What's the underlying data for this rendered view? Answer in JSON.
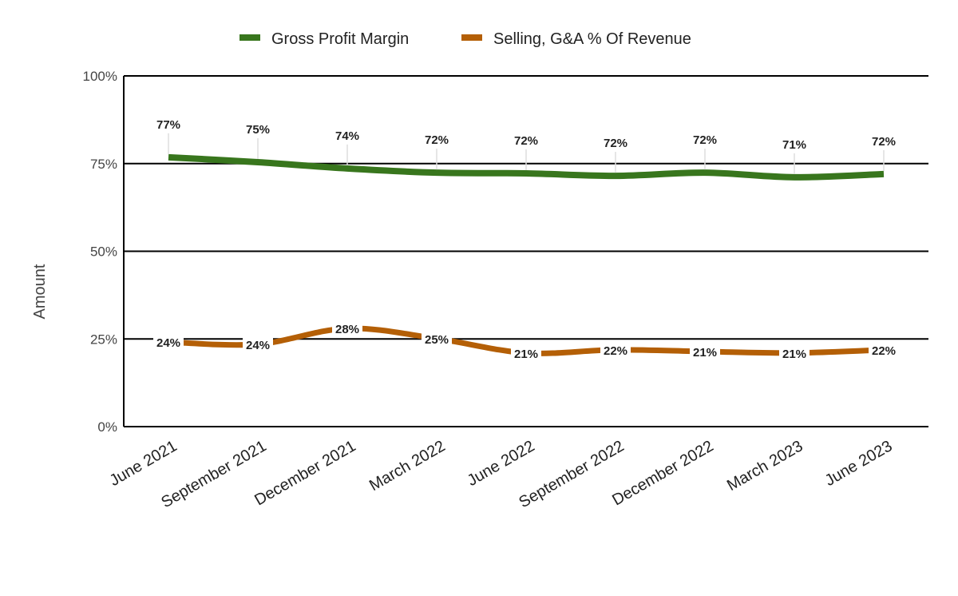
{
  "chart_data": {
    "type": "line",
    "title": "",
    "xlabel": "",
    "ylabel": "Amount",
    "ylim": [
      0,
      100
    ],
    "yticks": [
      "0%",
      "25%",
      "50%",
      "75%",
      "100%"
    ],
    "ytick_values": [
      0,
      25,
      50,
      75,
      100
    ],
    "grid": true,
    "legend_position": "top",
    "categories": [
      "June 2021",
      "September 2021",
      "December 2021",
      "March 2022",
      "June 2022",
      "September 2022",
      "December 2022",
      "March 2023",
      "June 2023"
    ],
    "series": [
      {
        "name": "Gross Profit Margin",
        "color": "#38761d",
        "values": [
          76.8,
          75.4,
          73.6,
          72.4,
          72.2,
          71.5,
          72.4,
          71.1,
          72.0
        ],
        "labels": [
          "77%",
          "75%",
          "74%",
          "72%",
          "72%",
          "72%",
          "72%",
          "71%",
          "72%"
        ]
      },
      {
        "name": "Selling, G&A % Of Revenue",
        "color": "#b45f06",
        "values": [
          24.1,
          23.5,
          28.0,
          25.1,
          21.0,
          21.9,
          21.4,
          21.0,
          21.9
        ],
        "labels": [
          "24%",
          "24%",
          "28%",
          "25%",
          "21%",
          "22%",
          "21%",
          "21%",
          "22%"
        ]
      }
    ]
  }
}
